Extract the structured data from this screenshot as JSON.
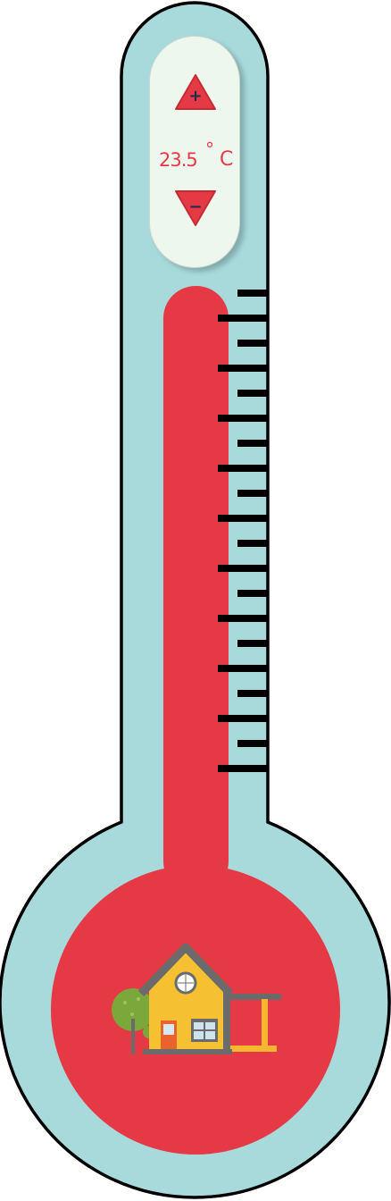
{
  "thermostat": {
    "temperature": "23.5",
    "degree_symbol": "°",
    "unit": "C",
    "increase_label": "+",
    "decrease_label": "−",
    "tick_count": 20
  },
  "colors": {
    "tube": "#a8dadc",
    "mercury": "#e63946",
    "outline": "#000000",
    "panel": "#eef7ee",
    "text": "#e63a46"
  },
  "illustration": {
    "icon": "house-with-tree-icon"
  }
}
